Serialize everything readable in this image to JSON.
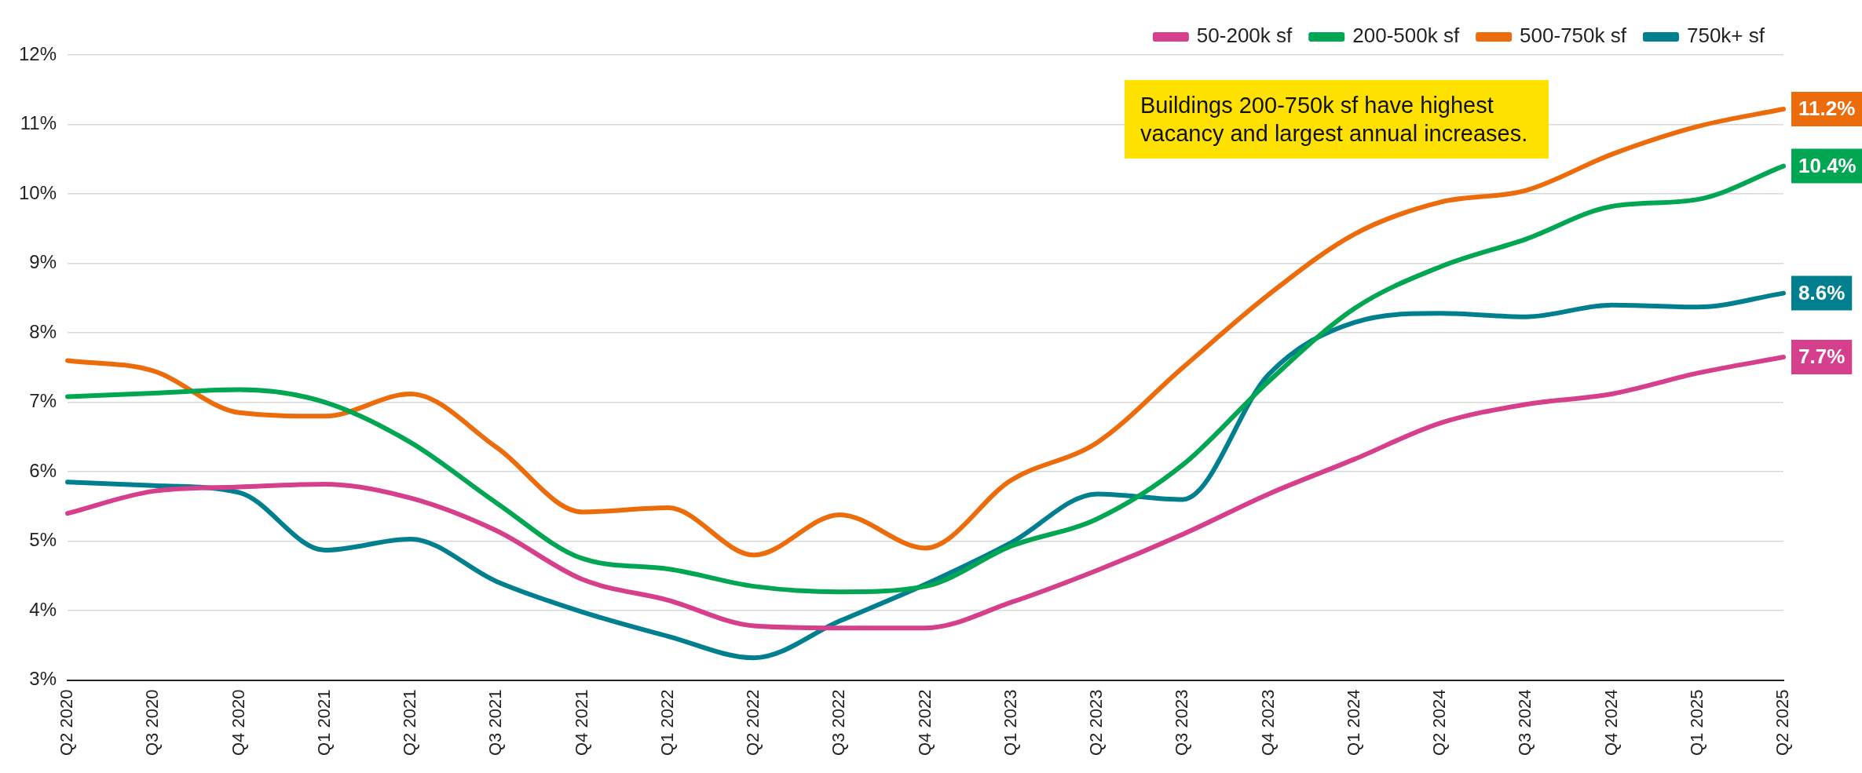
{
  "chart_data": {
    "type": "line",
    "categories": [
      "Q2 2020",
      "Q3 2020",
      "Q4 2020",
      "Q1 2021",
      "Q2 2021",
      "Q3 2021",
      "Q4 2021",
      "Q1 2022",
      "Q2 2022",
      "Q3 2022",
      "Q4 2022",
      "Q1 2023",
      "Q2 2023",
      "Q3 2023",
      "Q4 2023",
      "Q1 2024",
      "Q2 2024",
      "Q3 2024",
      "Q4 2024",
      "Q1 2025",
      "Q2 2025"
    ],
    "series": [
      {
        "name": "50-200k sf",
        "color": "#d63f8c",
        "values": [
          5.4,
          5.72,
          5.78,
          5.82,
          5.62,
          5.15,
          4.45,
          4.15,
          3.78,
          3.75,
          3.75,
          4.12,
          4.58,
          5.1,
          5.68,
          6.18,
          6.7,
          6.97,
          7.12,
          7.42,
          7.65
        ],
        "value_labels": [
          null,
          null,
          null,
          null,
          null,
          null,
          null,
          null,
          null,
          null,
          null,
          null,
          null,
          null,
          null,
          null,
          null,
          null,
          null,
          null,
          "7.7%"
        ]
      },
      {
        "name": "200-500k sf",
        "color": "#00a651",
        "values": [
          7.08,
          7.13,
          7.18,
          7.0,
          6.42,
          5.55,
          4.75,
          4.6,
          4.35,
          4.27,
          4.35,
          4.93,
          5.32,
          6.1,
          7.3,
          8.35,
          8.95,
          9.35,
          9.82,
          9.92,
          10.4
        ],
        "value_labels": [
          null,
          null,
          null,
          null,
          null,
          null,
          null,
          null,
          null,
          null,
          null,
          null,
          null,
          null,
          null,
          null,
          null,
          null,
          null,
          null,
          "10.4%"
        ]
      },
      {
        "name": "500-750k sf",
        "color": "#ec6b0a",
        "values": [
          7.6,
          7.45,
          6.85,
          6.8,
          7.12,
          6.35,
          5.42,
          5.48,
          4.8,
          5.38,
          4.9,
          5.88,
          6.42,
          7.5,
          8.55,
          9.42,
          9.88,
          10.05,
          10.57,
          10.97,
          11.22
        ],
        "value_labels": [
          null,
          null,
          null,
          null,
          null,
          null,
          null,
          null,
          null,
          null,
          null,
          null,
          null,
          null,
          null,
          null,
          null,
          null,
          null,
          null,
          "11.2%"
        ]
      },
      {
        "name": "750k+ sf",
        "color": "#00808f",
        "values": [
          5.85,
          5.8,
          5.7,
          4.87,
          5.03,
          4.42,
          3.98,
          3.63,
          3.32,
          3.85,
          4.38,
          4.98,
          5.68,
          5.6,
          7.4,
          8.15,
          8.28,
          8.23,
          8.4,
          8.37,
          8.57
        ],
        "value_labels": [
          null,
          null,
          null,
          null,
          null,
          null,
          null,
          null,
          null,
          null,
          null,
          null,
          null,
          null,
          null,
          null,
          null,
          null,
          null,
          null,
          "8.6%"
        ]
      }
    ],
    "ylim": [
      3,
      12
    ],
    "yticks": [
      {
        "value": 3,
        "label": "3%"
      },
      {
        "value": 4,
        "label": "4%"
      },
      {
        "value": 5,
        "label": "5%"
      },
      {
        "value": 6,
        "label": "6%"
      },
      {
        "value": 7,
        "label": "7%"
      },
      {
        "value": 8,
        "label": "8%"
      },
      {
        "value": 9,
        "label": "9%"
      },
      {
        "value": 10,
        "label": "10%"
      },
      {
        "value": 11,
        "label": "11%"
      },
      {
        "value": 12,
        "label": "12%"
      }
    ],
    "grid": "y",
    "legend": "top right",
    "marker": "none",
    "line_style": "solid",
    "annotations": [
      "Buildings 200-750k sf have highest vacancy and largest annual increases."
    ]
  }
}
